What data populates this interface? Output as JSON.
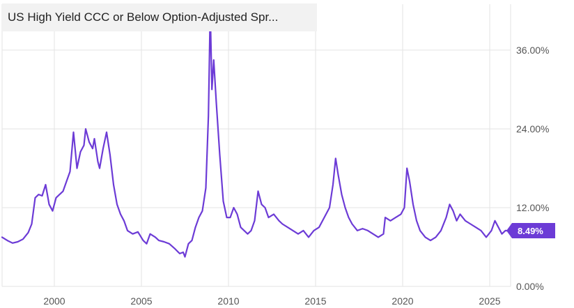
{
  "chart_data": {
    "type": "line",
    "title": "US High Yield CCC or Below Option-Adjusted Spr...",
    "xlabel": "",
    "ylabel": "",
    "xlim": [
      1997.0,
      2026.2
    ],
    "ylim": [
      0,
      43
    ],
    "grid": true,
    "y_ticks": [
      {
        "value": 0,
        "label": "0.00%"
      },
      {
        "value": 12,
        "label": "12.00%"
      },
      {
        "value": 24,
        "label": "24.00%"
      },
      {
        "value": 36,
        "label": "36.00%"
      }
    ],
    "x_ticks": [
      {
        "value": 2000,
        "label": "2000"
      },
      {
        "value": 2005,
        "label": "2005"
      },
      {
        "value": 2010,
        "label": "2010"
      },
      {
        "value": 2015,
        "label": "2015"
      },
      {
        "value": 2020,
        "label": "2020"
      },
      {
        "value": 2025,
        "label": "2025"
      }
    ],
    "series": [
      {
        "color": "#6c3bd6",
        "last_value_label": "8.49%",
        "points": [
          [
            1997.0,
            7.5
          ],
          [
            1997.3,
            7.0
          ],
          [
            1997.6,
            6.6
          ],
          [
            1997.9,
            6.8
          ],
          [
            1998.2,
            7.2
          ],
          [
            1998.5,
            8.2
          ],
          [
            1998.7,
            9.5
          ],
          [
            1998.9,
            13.5
          ],
          [
            1999.1,
            14.0
          ],
          [
            1999.3,
            13.8
          ],
          [
            1999.5,
            15.5
          ],
          [
            1999.7,
            12.5
          ],
          [
            1999.9,
            11.5
          ],
          [
            2000.1,
            13.5
          ],
          [
            2000.3,
            14.0
          ],
          [
            2000.5,
            14.5
          ],
          [
            2000.7,
            16.0
          ],
          [
            2000.9,
            17.5
          ],
          [
            2001.1,
            23.5
          ],
          [
            2001.3,
            18.0
          ],
          [
            2001.5,
            20.5
          ],
          [
            2001.7,
            21.5
          ],
          [
            2001.8,
            24.0
          ],
          [
            2002.0,
            22.0
          ],
          [
            2002.2,
            21.0
          ],
          [
            2002.3,
            22.5
          ],
          [
            2002.5,
            19.0
          ],
          [
            2002.6,
            18.0
          ],
          [
            2002.8,
            21.0
          ],
          [
            2003.0,
            23.5
          ],
          [
            2003.2,
            20.0
          ],
          [
            2003.4,
            15.5
          ],
          [
            2003.6,
            12.5
          ],
          [
            2003.8,
            11.0
          ],
          [
            2004.0,
            10.0
          ],
          [
            2004.2,
            8.5
          ],
          [
            2004.5,
            8.0
          ],
          [
            2004.8,
            8.3
          ],
          [
            2005.1,
            7.0
          ],
          [
            2005.3,
            6.5
          ],
          [
            2005.5,
            8.0
          ],
          [
            2005.8,
            7.5
          ],
          [
            2006.0,
            7.0
          ],
          [
            2006.3,
            6.8
          ],
          [
            2006.6,
            6.5
          ],
          [
            2006.9,
            5.8
          ],
          [
            2007.2,
            5.0
          ],
          [
            2007.4,
            5.2
          ],
          [
            2007.5,
            4.5
          ],
          [
            2007.7,
            6.5
          ],
          [
            2007.9,
            7.0
          ],
          [
            2008.1,
            9.0
          ],
          [
            2008.3,
            10.5
          ],
          [
            2008.5,
            11.5
          ],
          [
            2008.7,
            15.0
          ],
          [
            2008.85,
            26.0
          ],
          [
            2008.95,
            42.0
          ],
          [
            2009.05,
            30.0
          ],
          [
            2009.15,
            34.5
          ],
          [
            2009.3,
            28.0
          ],
          [
            2009.5,
            20.0
          ],
          [
            2009.7,
            13.0
          ],
          [
            2009.9,
            10.5
          ],
          [
            2010.1,
            10.5
          ],
          [
            2010.3,
            12.0
          ],
          [
            2010.5,
            11.0
          ],
          [
            2010.7,
            9.0
          ],
          [
            2010.9,
            8.5
          ],
          [
            2011.1,
            8.0
          ],
          [
            2011.3,
            8.5
          ],
          [
            2011.5,
            10.0
          ],
          [
            2011.7,
            14.5
          ],
          [
            2011.9,
            12.5
          ],
          [
            2012.1,
            12.0
          ],
          [
            2012.3,
            10.5
          ],
          [
            2012.6,
            11.0
          ],
          [
            2012.9,
            10.0
          ],
          [
            2013.1,
            9.5
          ],
          [
            2013.4,
            9.0
          ],
          [
            2013.7,
            8.5
          ],
          [
            2014.0,
            8.0
          ],
          [
            2014.3,
            8.5
          ],
          [
            2014.6,
            7.5
          ],
          [
            2014.9,
            8.5
          ],
          [
            2015.2,
            9.0
          ],
          [
            2015.5,
            10.5
          ],
          [
            2015.8,
            12.0
          ],
          [
            2016.0,
            15.5
          ],
          [
            2016.15,
            19.5
          ],
          [
            2016.3,
            17.0
          ],
          [
            2016.5,
            14.0
          ],
          [
            2016.7,
            12.0
          ],
          [
            2016.9,
            10.5
          ],
          [
            2017.1,
            9.5
          ],
          [
            2017.4,
            8.5
          ],
          [
            2017.7,
            8.8
          ],
          [
            2018.0,
            8.5
          ],
          [
            2018.3,
            8.0
          ],
          [
            2018.6,
            7.5
          ],
          [
            2018.9,
            8.0
          ],
          [
            2019.0,
            10.5
          ],
          [
            2019.3,
            10.0
          ],
          [
            2019.6,
            10.5
          ],
          [
            2019.9,
            11.0
          ],
          [
            2020.1,
            12.0
          ],
          [
            2020.25,
            18.0
          ],
          [
            2020.4,
            16.0
          ],
          [
            2020.6,
            12.5
          ],
          [
            2020.8,
            10.0
          ],
          [
            2021.0,
            8.5
          ],
          [
            2021.3,
            7.5
          ],
          [
            2021.6,
            7.0
          ],
          [
            2021.9,
            7.5
          ],
          [
            2022.2,
            8.5
          ],
          [
            2022.5,
            10.5
          ],
          [
            2022.7,
            12.5
          ],
          [
            2022.9,
            11.5
          ],
          [
            2023.1,
            10.0
          ],
          [
            2023.3,
            11.0
          ],
          [
            2023.6,
            10.0
          ],
          [
            2023.9,
            9.5
          ],
          [
            2024.2,
            9.0
          ],
          [
            2024.5,
            8.5
          ],
          [
            2024.8,
            7.5
          ],
          [
            2025.1,
            8.5
          ],
          [
            2025.3,
            10.0
          ],
          [
            2025.5,
            9.0
          ],
          [
            2025.7,
            8.0
          ],
          [
            2025.9,
            8.5
          ],
          [
            2026.0,
            8.49
          ]
        ]
      }
    ]
  }
}
